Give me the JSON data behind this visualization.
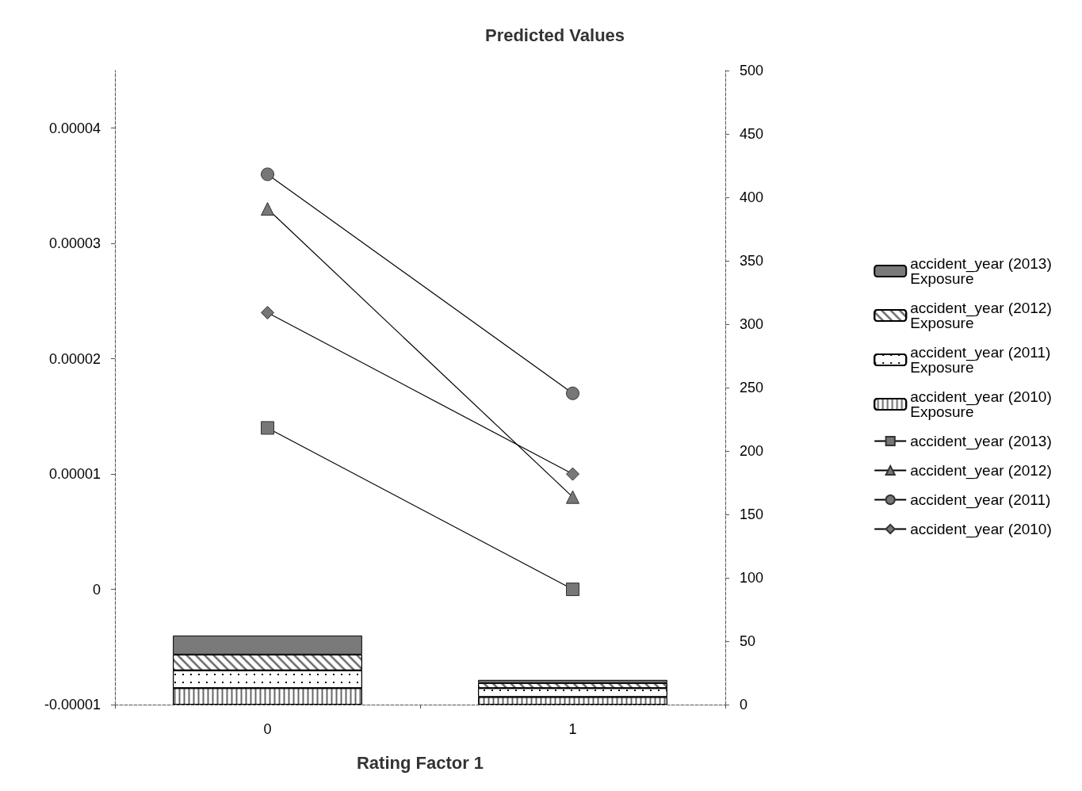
{
  "chart_data": {
    "type": "bar",
    "title": "Predicted Values",
    "xlabel": "Rating Factor 1",
    "categories": [
      "0",
      "1"
    ],
    "stacked": true,
    "series": [
      {
        "name": "accident_year (2010) Exposure",
        "color": "#ffffff",
        "axis": "y2",
        "values": [
          13,
          6
        ]
      },
      {
        "name": "accident_year (2011) Exposure",
        "color": "#ffffff",
        "axis": "y2",
        "values": [
          14,
          7
        ]
      },
      {
        "name": "accident_year (2012) Exposure",
        "color": "#ffffff",
        "axis": "y2",
        "values": [
          12.5,
          4
        ]
      },
      {
        "name": "accident_year (2013) Exposure",
        "color": "#7a7a7a",
        "axis": "y2",
        "values": [
          15,
          2.5
        ]
      },
      {
        "name": "accident_year (2010)",
        "type": "line",
        "marker": "diamond",
        "color": "#777777",
        "values": [
          2.4e-05,
          1e-05
        ]
      },
      {
        "name": "accident_year (2011)",
        "type": "line",
        "marker": "circle",
        "color": "#777777",
        "values": [
          3.6e-05,
          1.7e-05
        ]
      },
      {
        "name": "accident_year (2012)",
        "type": "line",
        "marker": "triangle",
        "color": "#777777",
        "values": [
          3.3e-05,
          8e-06
        ]
      },
      {
        "name": "accident_year (2013)",
        "type": "line",
        "marker": "square",
        "color": "#777777",
        "values": [
          1.4e-05,
          0
        ]
      }
    ],
    "ylim": [
      -1e-05,
      4.5e-05
    ],
    "yticks": [
      {
        "value": -1e-05,
        "label": "-0.00001"
      },
      0,
      {
        "value": 1e-05,
        "label": "0.00001"
      },
      {
        "value": 2e-05,
        "label": "0.00002"
      },
      {
        "value": 3e-05,
        "label": "0.00003"
      },
      {
        "value": 4e-05,
        "label": "0.00004"
      }
    ],
    "y2lim": [
      0,
      500
    ],
    "y2ticks": [
      0,
      50,
      100,
      150,
      200,
      250,
      300,
      350,
      400,
      450,
      500
    ],
    "legend": "right"
  }
}
